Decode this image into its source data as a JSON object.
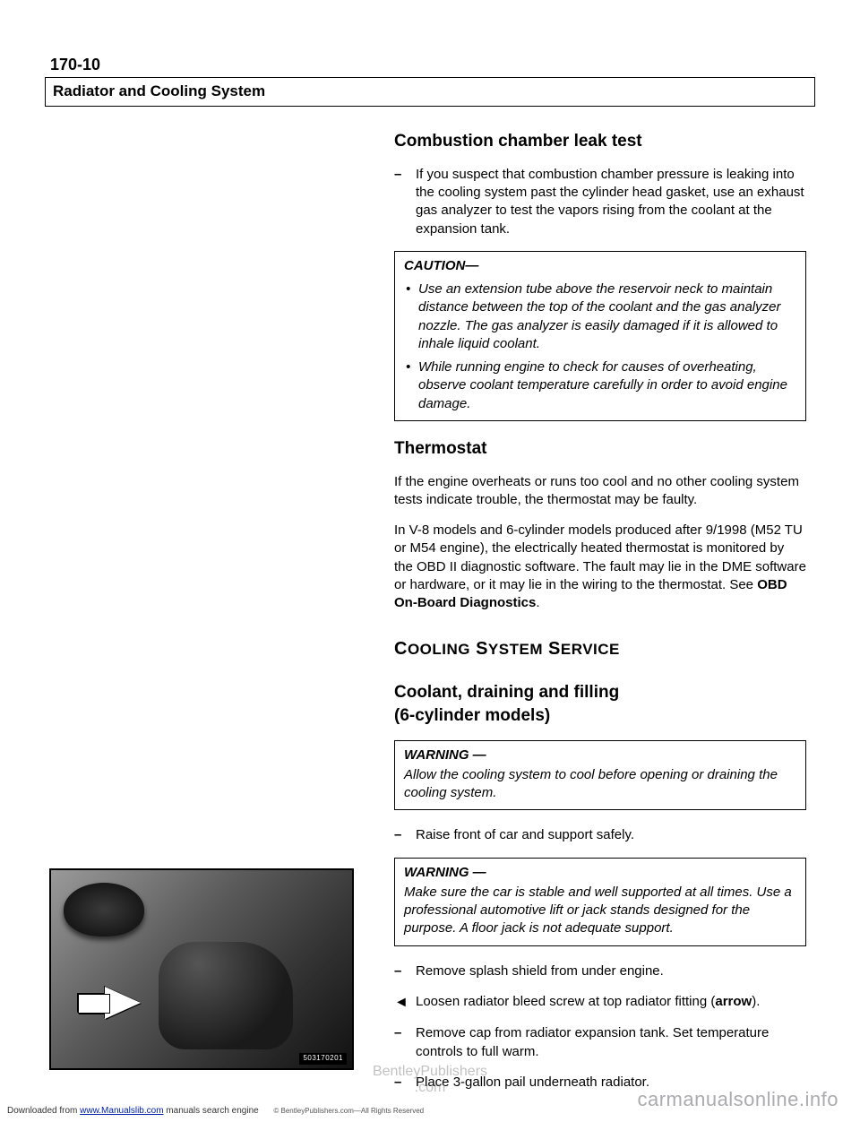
{
  "pageNumber": "170-10",
  "headerTitle": "Radiator and Cooling System",
  "section1": {
    "title": "Combustion chamber leak test",
    "step1": "If you suspect that combustion chamber pressure is leaking into the cooling system past the cylinder head gasket, use an exhaust gas analyzer to test the vapors rising from the coolant at the expansion tank."
  },
  "caution": {
    "title": "CAUTION—",
    "items": [
      "Use an extension tube above the reservoir neck to maintain distance between the top of the coolant and the gas analyzer nozzle. The gas analyzer is easily damaged if it is allowed to inhale liquid coolant.",
      "While running engine to check for causes of overheating, observe coolant temperature carefully in order to avoid engine damage."
    ]
  },
  "thermostat": {
    "title": "Thermostat",
    "p1": "If the engine overheats or runs too cool and no other cooling system tests indicate trouble, the thermostat may be faulty.",
    "p2a": "In V-8 models and 6-cylinder models produced after 9/1998 (M52 TU or M54 engine), the electrically heated thermostat is monitored by the OBD II diagnostic software. The fault may lie in the DME software or hardware, or it may lie in the wiring to the thermostat. See ",
    "p2b": "OBD On-Board Diagnostics",
    "p2c": "."
  },
  "serviceTitle": "COOLING SYSTEM SERVICE",
  "coolant": {
    "title1": "Coolant, draining and filling",
    "title2": "(6-cylinder models)"
  },
  "warning1": {
    "title": "WARNING —",
    "text": "Allow the cooling system to cool before opening or draining the cooling system."
  },
  "step_raise": "Raise front of car and support safely.",
  "warning2": {
    "title": "WARNING —",
    "text": "Make sure the car is stable and well supported at all times. Use a professional automotive lift or jack stands designed for the purpose. A floor jack is not adequate support."
  },
  "step_splash": "Remove splash shield from under engine.",
  "step_bleed_a": "Loosen radiator bleed screw at top radiator fitting (",
  "step_bleed_b": "arrow",
  "step_bleed_c": ").",
  "step_cap": "Remove cap from radiator expansion tank. Set temperature controls to full warm.",
  "step_pail": "Place 3-gallon pail underneath radiator.",
  "figLabel": "503170201",
  "footer": {
    "download_a": "Downloaded from ",
    "download_url": "www.Manualslib.com",
    "download_b": " manuals search engine",
    "rights": "© BentleyPublishers.com—All Rights Reserved",
    "wm_center1": "BentleyPublishers",
    "wm_center2": ".com",
    "wm_right": "carmanualsonline.info"
  }
}
